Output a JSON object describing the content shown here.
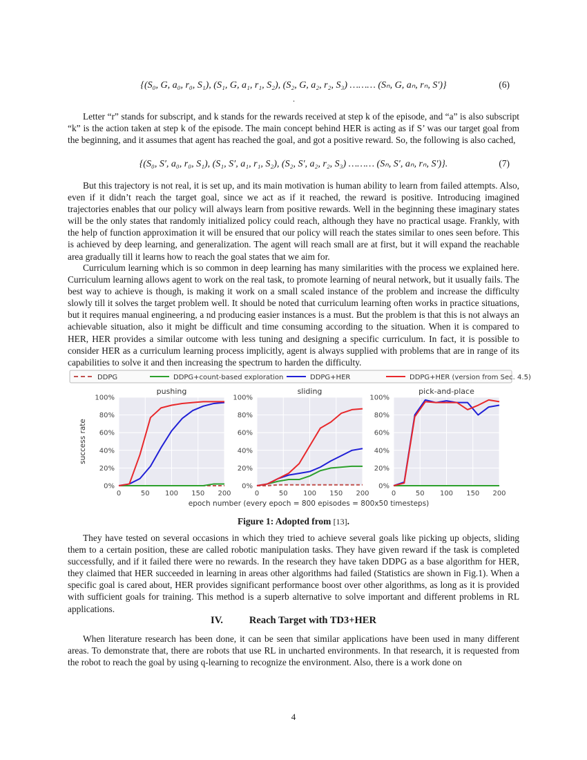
{
  "equations": {
    "eq6": {
      "body": "{(S₀, G, a₀, r₀, S₁), (S₁, G, a₁, r₁, S₂), (S₂, G, a₂, r₂, S₃) ……… (Sₙ, G, aₙ, rₙ, S′)}",
      "number": "(6)"
    },
    "eq6_dot": ".",
    "eq7": {
      "body": "{(S₀, S′, a₀, r₀, S₁), (S₁, S′, a₁, r₁, S₂), (S₂, S′, a₂, r₂, S₃) ……… (Sₙ, S′, aₙ, rₙ, S′)}.",
      "number": "(7)"
    }
  },
  "paragraphs": [
    "Letter “r” stands for subscript, and k stands for the rewards received at step k of the episode, and “a” is also subscript “k” is the action taken at step k of the episode. The main concept behind HER is acting as if S’ was our target goal from the beginning, and it assumes that agent has reached the goal, and got a positive reward. So, the following is also cached,",
    "But this trajectory is not real, it is set up, and its main motivation is human ability to learn from failed attempts. Also, even if it didn’t reach the target goal, since we act as if it reached, the reward is positive. Introducing imagined trajectories enables that our policy will always learn from positive rewards. Well in the beginning these imaginary states will be the only states that randomly initialized policy could reach, although they have no practical usage. Frankly, with the help of function approximation it will be ensured that our policy will reach the states similar to ones seen before. This is achieved by deep learning, and generalization. The agent will reach small are at first, but it will expand the reachable area gradually till it learns how to reach the goal states that we aim for.",
    "Curriculum learning which is so common in deep learning has many similarities with the process we explained here. Curriculum learning allows agent to work on the real task, to promote learning of neural network, but it usually fails. The best way to achieve is though, is making it work on a small scaled instance of the problem and increase the difficulty slowly till it solves the target problem well. It should be noted that curriculum learning often works in practice situations, but it requires manual engineering, a nd producing easier instances is a must. But the problem is that this is not always an achievable situation, also it might be difficult and time consuming according to the situation. When it is compared to HER, HER provides a similar outcome with less tuning and designing a specific curriculum. In fact, it is possible to consider HER as a curriculum learning process implicitly, agent is always supplied with problems that are in range of its capabilities to solve it and then increasing the spectrum to harden the difficulty.",
    "They have tested on several occasions in which they tried to achieve several goals like picking up objects, sliding them to a certain position, these are called robotic manipulation tasks. They have given reward if the task is completed successfully, and if it failed there were no rewards. In the research they have taken DDPG as a base algorithm for HER, they claimed that HER succeeded in learning in areas other algorithms had failed (Statistics are shown in Fig.1). When a specific goal is cared about, HER provides significant performance boost over other algorithms, as long as it is provided with sufficient goals for training. This method is a superb alternative to solve important and different problems in RL applications.",
    "When literature research has been done, it can be seen that similar applications have been used in many different areas. To demonstrate that, there are robots that use RL in uncharted environments.  In that research, it is requested from the robot to reach the goal by using q-learning to recognize the environment.  Also, there is a work done on"
  ],
  "figure_caption": {
    "text": "Figure 1: Adopted from ",
    "ref": "[13]",
    "end": "."
  },
  "section_heading": {
    "numeral": "IV.",
    "title": "Reach Target with TD3+HER"
  },
  "page_number": "4",
  "chart_data": {
    "type": "line",
    "ylabel": "success rate",
    "xlabel": "epoch number (every epoch = 800 episodes = 800x50 timesteps)",
    "x": [
      0,
      20,
      40,
      60,
      80,
      100,
      120,
      140,
      160,
      180,
      200
    ],
    "xlim": [
      0,
      200
    ],
    "ylim": [
      0,
      100
    ],
    "xticks": [
      "0",
      "50",
      "100",
      "150",
      "200"
    ],
    "yticks": [
      "0%",
      "20%",
      "40%",
      "60%",
      "80%",
      "100%"
    ],
    "grid": true,
    "legend_placement": "top",
    "legend": [
      {
        "name": "DDPG",
        "color": "#c0504d",
        "style": "dashed"
      },
      {
        "name": "DDPG+count-based exploration",
        "color": "#2ca02c",
        "style": "solid"
      },
      {
        "name": "DDPG+HER",
        "color": "#1f1fd6",
        "style": "solid"
      },
      {
        "name": "DDPG+HER (version from Sec. 4.5)",
        "color": "#e8282b",
        "style": "solid"
      }
    ],
    "panels": [
      {
        "title": "pushing",
        "series": [
          {
            "name": "DDPG",
            "values": [
              0,
              0,
              0,
              0,
              0,
              0,
              0,
              0,
              0,
              0,
              0
            ]
          },
          {
            "name": "DDPG+count-based exploration",
            "values": [
              0,
              0,
              0,
              0,
              0,
              0,
              0,
              0,
              0,
              2,
              2
            ]
          },
          {
            "name": "DDPG+HER",
            "values": [
              0,
              2,
              8,
              22,
              43,
              62,
              76,
              85,
              90,
              93,
              94
            ]
          },
          {
            "name": "DDPG+HER (version from Sec. 4.5)",
            "values": [
              0,
              2,
              35,
              77,
              88,
              91,
              93,
              94,
              95,
              95,
              95
            ]
          }
        ]
      },
      {
        "title": "sliding",
        "series": [
          {
            "name": "DDPG",
            "values": [
              0,
              0,
              1,
              1,
              1,
              1,
              1,
              1,
              1,
              1,
              1
            ]
          },
          {
            "name": "DDPG+count-based exploration",
            "values": [
              0,
              2,
              5,
              7,
              7,
              11,
              17,
              20,
              21,
              22,
              22
            ]
          },
          {
            "name": "DDPG+HER",
            "values": [
              0,
              2,
              8,
              12,
              14,
              16,
              21,
              28,
              34,
              40,
              42
            ]
          },
          {
            "name": "DDPG+HER (version from Sec. 4.5)",
            "values": [
              0,
              2,
              8,
              14,
              25,
              45,
              65,
              72,
              82,
              86,
              87
            ]
          }
        ]
      },
      {
        "title": "pick-and-place",
        "series": [
          {
            "name": "DDPG",
            "values": [
              0,
              0,
              0,
              0,
              0,
              0,
              0,
              0,
              0,
              0,
              0
            ]
          },
          {
            "name": "DDPG+count-based exploration",
            "values": [
              0,
              0,
              0,
              0,
              0,
              0,
              0,
              0,
              0,
              0,
              0
            ]
          },
          {
            "name": "DDPG+HER",
            "values": [
              0,
              4,
              80,
              97,
              94,
              96,
              94,
              94,
              80,
              89,
              91
            ]
          },
          {
            "name": "DDPG+HER (version from Sec. 4.5)",
            "values": [
              0,
              3,
              78,
              95,
              94,
              94,
              94,
              86,
              91,
              97,
              95
            ]
          }
        ]
      }
    ]
  }
}
